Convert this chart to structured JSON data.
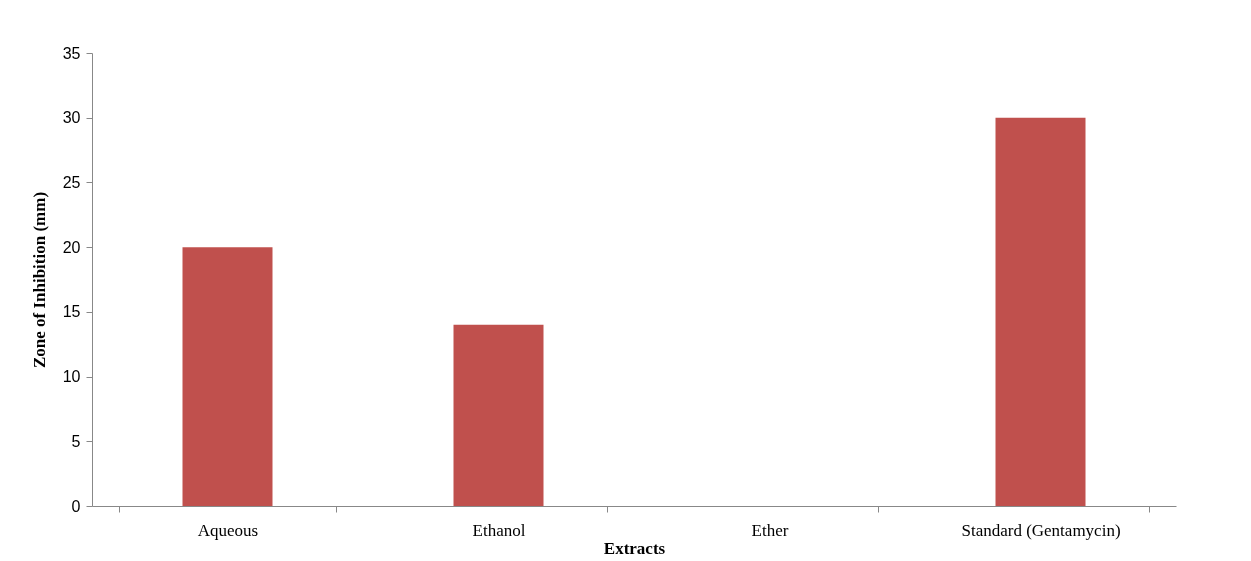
{
  "chart_data": {
    "type": "bar",
    "xlabel": "Extracts",
    "ylabel": "Zone of Inhibition (mm)",
    "categories": [
      "Aqueous",
      "Ethanol",
      "Ether",
      "Standard (Gentamycin)"
    ],
    "values": [
      20,
      14,
      0,
      30
    ],
    "color": "#c0504d",
    "ylim": [
      0,
      35
    ],
    "yticks": [
      0,
      5,
      10,
      15,
      20,
      25,
      30,
      35
    ],
    "grid": false
  }
}
